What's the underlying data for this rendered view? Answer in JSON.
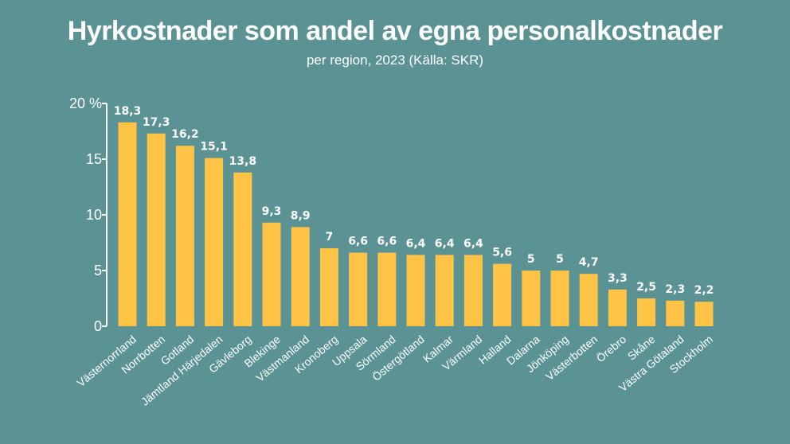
{
  "chart_data": {
    "type": "bar",
    "title": "Hyrkostnader som andel av egna personalkostnader",
    "subtitle": "per region, 2023 (Källa: SKR)",
    "categories": [
      "Västernorrland",
      "Norrbotten",
      "Gotland",
      "Jämtland Härjedalen",
      "Gävleborg",
      "Blekinge",
      "Västmanland",
      "Kronoberg",
      "Uppsala",
      "Sörmland",
      "Östergötland",
      "Kalmar",
      "Värmland",
      "Halland",
      "Dalarna",
      "Jönköping",
      "Västerbotten",
      "Örebro",
      "Skåne",
      "Västra Götaland",
      "Stockholm"
    ],
    "values": [
      18.3,
      17.3,
      16.2,
      15.1,
      13.8,
      9.3,
      8.9,
      7,
      6.6,
      6.6,
      6.4,
      6.4,
      6.4,
      5.6,
      5,
      5,
      4.7,
      3.3,
      2.5,
      2.3,
      2.2
    ],
    "value_labels": [
      "18,3",
      "17,3",
      "16,2",
      "15,1",
      "13,8",
      "9,3",
      "8,9",
      "7",
      "6,6",
      "6,6",
      "6,4",
      "6,4",
      "6,4",
      "5,6",
      "5",
      "5",
      "4,7",
      "3,3",
      "2,5",
      "2,3",
      "2,2"
    ],
    "yticks": [
      0,
      5,
      10,
      15,
      20
    ],
    "ytick_labels": [
      "0",
      "5",
      "10",
      "15",
      "20 %"
    ],
    "ylim": [
      0,
      20
    ],
    "bar_color": "#ffc445",
    "axis_color": "#ffffff",
    "background_color": "#5b9293",
    "grid": false,
    "legend": "none"
  }
}
